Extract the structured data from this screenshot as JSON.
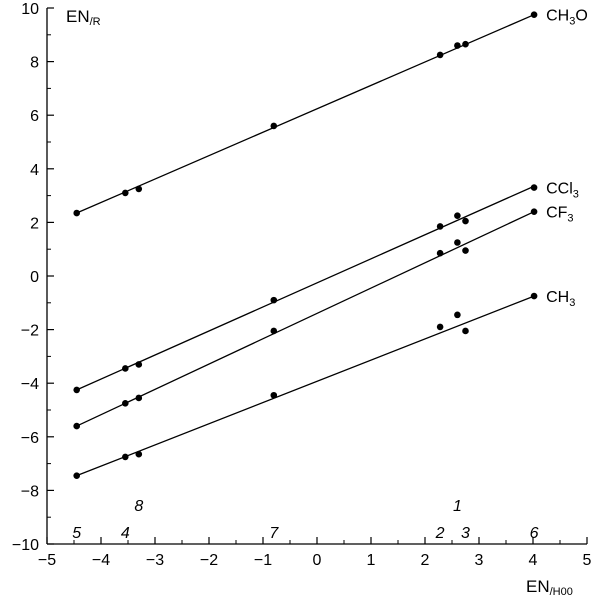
{
  "chart_data": {
    "type": "scatter",
    "xlabel": "EN",
    "xlabel_sub": "/H00",
    "ylabel": "EN",
    "ylabel_sub": "/R",
    "xlim": [
      -5,
      5
    ],
    "ylim": [
      -10,
      10
    ],
    "xticks": [
      -5,
      -4,
      -3,
      -2,
      -1,
      0,
      1,
      2,
      3,
      4,
      5
    ],
    "xtick_labels": [
      "−5",
      "−4",
      "−3",
      "−2",
      "−1",
      "0",
      "1",
      "2",
      "3",
      "4",
      "5"
    ],
    "yticks": [
      -10,
      -8,
      -6,
      -4,
      -2,
      0,
      2,
      4,
      6,
      8,
      10
    ],
    "ytick_labels": [
      "−10",
      "−8",
      "−6",
      "−4",
      "−2",
      "0",
      "2",
      "4",
      "6",
      "8",
      "10"
    ],
    "grid": false,
    "x": [
      -4.45,
      -3.55,
      -3.3,
      -0.8,
      2.28,
      2.6,
      2.75,
      4.02
    ],
    "series": [
      {
        "name": "CH₃O",
        "label_main": "CH",
        "label_sub": "3",
        "label_tail": "O",
        "y": [
          2.35,
          3.1,
          3.25,
          5.6,
          8.25,
          8.6,
          8.65,
          9.75
        ],
        "fit": [
          [
            -4.45,
            2.35
          ],
          [
            4.02,
            9.75
          ]
        ]
      },
      {
        "name": "CCl₃",
        "label_main": "CCl",
        "label_sub": "3",
        "label_tail": "",
        "y": [
          -4.25,
          -3.45,
          -3.3,
          -0.9,
          1.85,
          2.25,
          2.05,
          3.3
        ],
        "fit": [
          [
            -4.45,
            -4.25
          ],
          [
            4.02,
            3.35
          ]
        ]
      },
      {
        "name": "CF₃",
        "label_main": "CF",
        "label_sub": "3",
        "label_tail": "",
        "y": [
          -5.6,
          -4.75,
          -4.55,
          -2.05,
          0.85,
          1.25,
          0.95,
          2.4
        ],
        "fit": [
          [
            -4.45,
            -5.6
          ],
          [
            4.02,
            2.4
          ]
        ]
      },
      {
        "name": "CH₃",
        "label_main": "CH",
        "label_sub": "3",
        "label_tail": "",
        "y": [
          -7.45,
          -6.75,
          -6.65,
          -4.45,
          -1.9,
          -1.45,
          -2.05,
          -0.75
        ],
        "fit": [
          [
            -4.45,
            -7.45
          ],
          [
            4.02,
            -0.75
          ]
        ]
      }
    ],
    "point_labels": [
      {
        "text": "5",
        "x": -4.45,
        "y": -9.55
      },
      {
        "text": "4",
        "x": -3.55,
        "y": -9.55
      },
      {
        "text": "8",
        "x": -3.3,
        "y": -8.55
      },
      {
        "text": "7",
        "x": -0.8,
        "y": -9.55
      },
      {
        "text": "2",
        "x": 2.28,
        "y": -9.55
      },
      {
        "text": "1",
        "x": 2.6,
        "y": -8.55
      },
      {
        "text": "3",
        "x": 2.75,
        "y": -9.55
      },
      {
        "text": "6",
        "x": 4.02,
        "y": -9.55
      }
    ]
  }
}
